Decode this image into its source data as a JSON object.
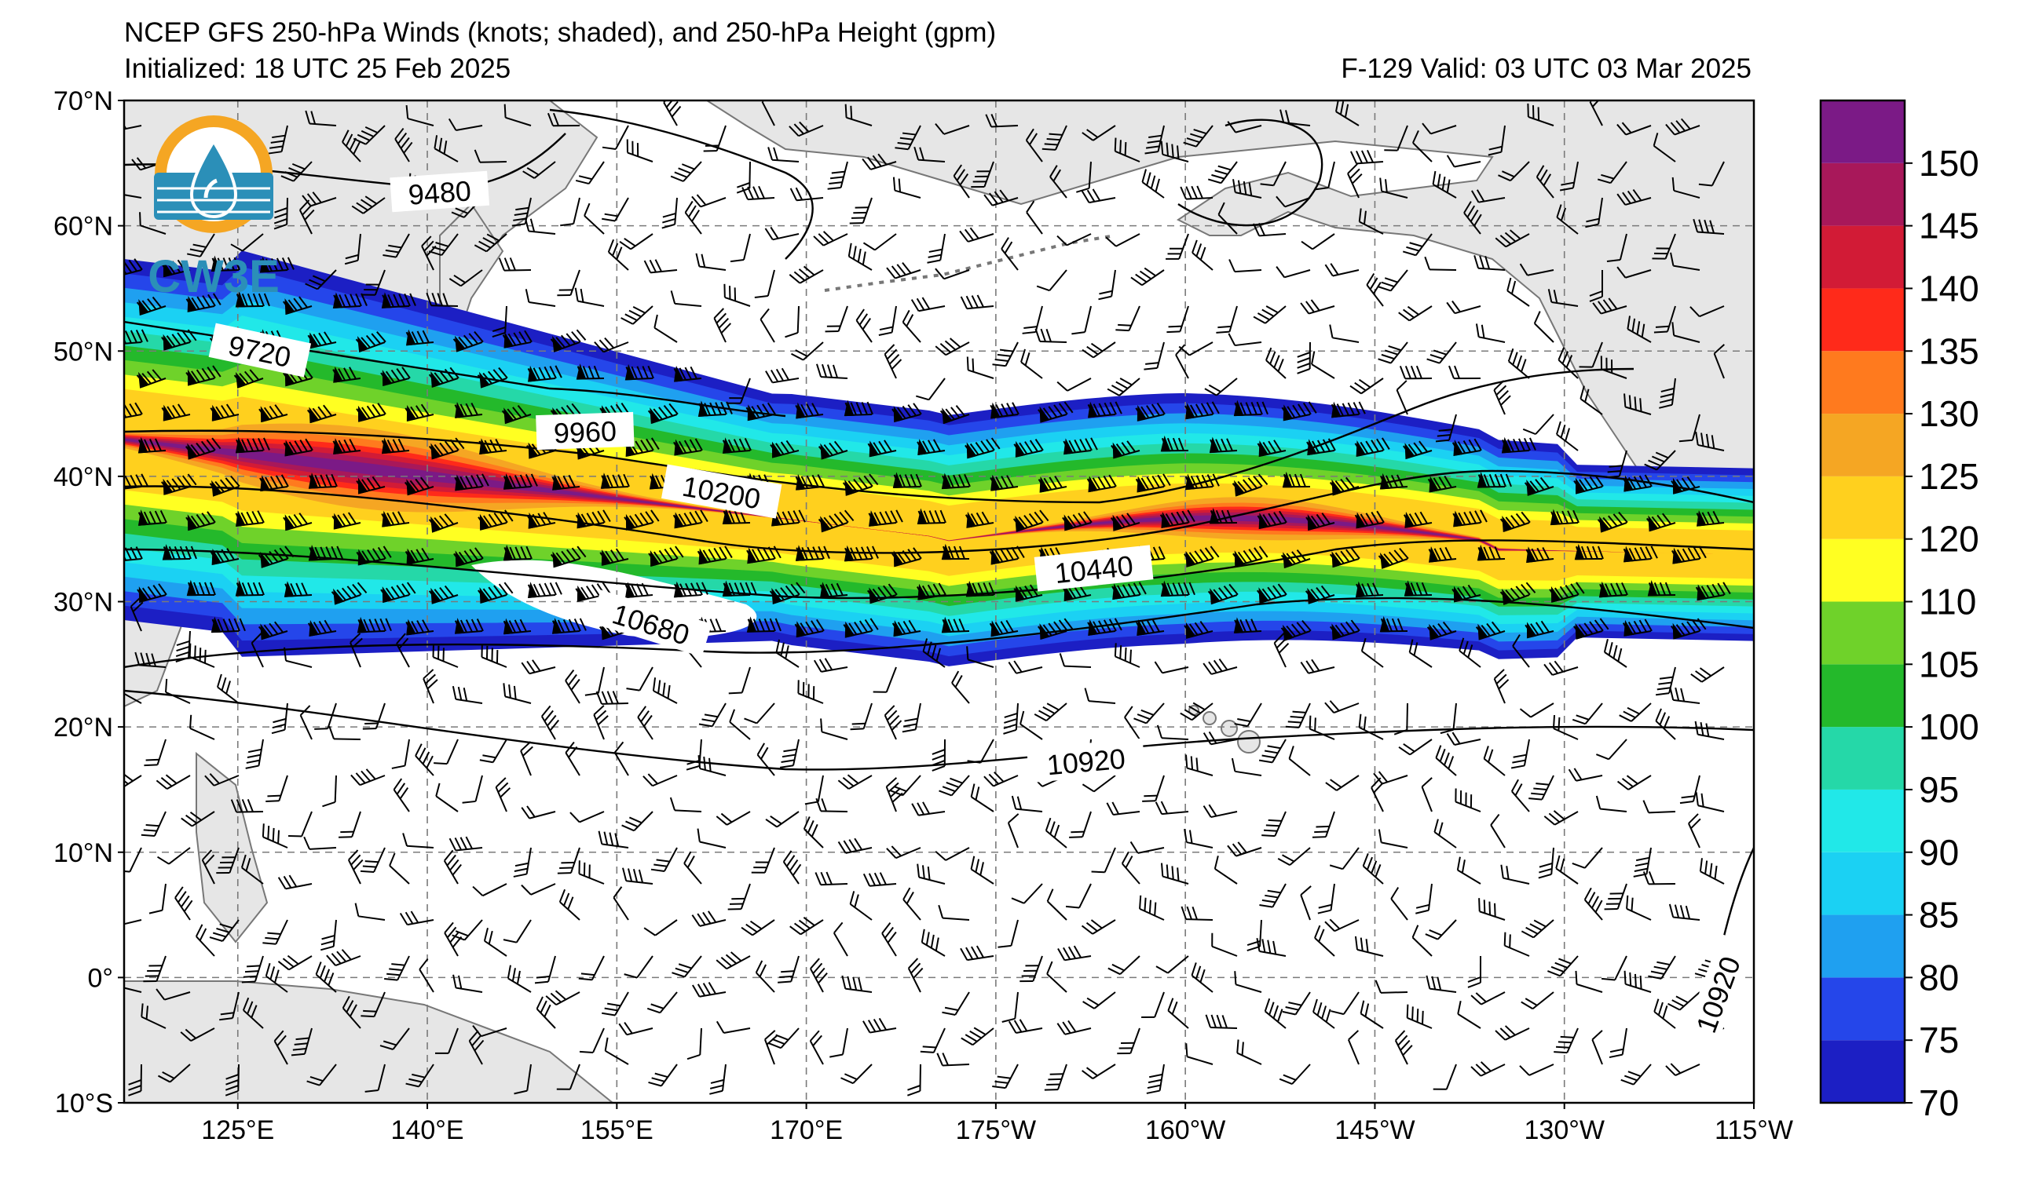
{
  "header": {
    "title": "NCEP GFS 250-hPa Winds (knots; shaded), and 250-hPa Height (gpm)",
    "initialized": "Initialized: 18 UTC 25 Feb 2025",
    "valid": "F-129  Valid: 03 UTC 03 Mar 2025"
  },
  "logo": {
    "text": "CW3E"
  },
  "map": {
    "lat_labels": [
      "70°N",
      "60°N",
      "50°N",
      "40°N",
      "30°N",
      "20°N",
      "10°N",
      "0°",
      "10°S"
    ],
    "lon_labels": [
      "125°E",
      "140°E",
      "155°E",
      "170°E",
      "175°W",
      "160°W",
      "145°W",
      "130°W",
      "115°W"
    ],
    "contour_labels": [
      {
        "value": "9480"
      },
      {
        "value": "9720"
      },
      {
        "value": "9960"
      },
      {
        "value": "10200"
      },
      {
        "value": "10440"
      },
      {
        "value": "10680"
      },
      {
        "value": "10920"
      },
      {
        "value": "10920"
      }
    ]
  },
  "colorbar": {
    "levels": [
      "70",
      "75",
      "80",
      "85",
      "90",
      "95",
      "100",
      "105",
      "110",
      "120",
      "125",
      "130",
      "135",
      "140",
      "145",
      "150"
    ],
    "colors": [
      "#1c1fc4",
      "#2546ea",
      "#1fa0f0",
      "#1bd1f3",
      "#21e8e8",
      "#25d8a8",
      "#24b92b",
      "#6fd22a",
      "#ffff22",
      "#ffd01e",
      "#f5a623",
      "#ff7a1e",
      "#ff2a1a",
      "#d21b36",
      "#a8185a",
      "#7b1a86"
    ]
  }
}
